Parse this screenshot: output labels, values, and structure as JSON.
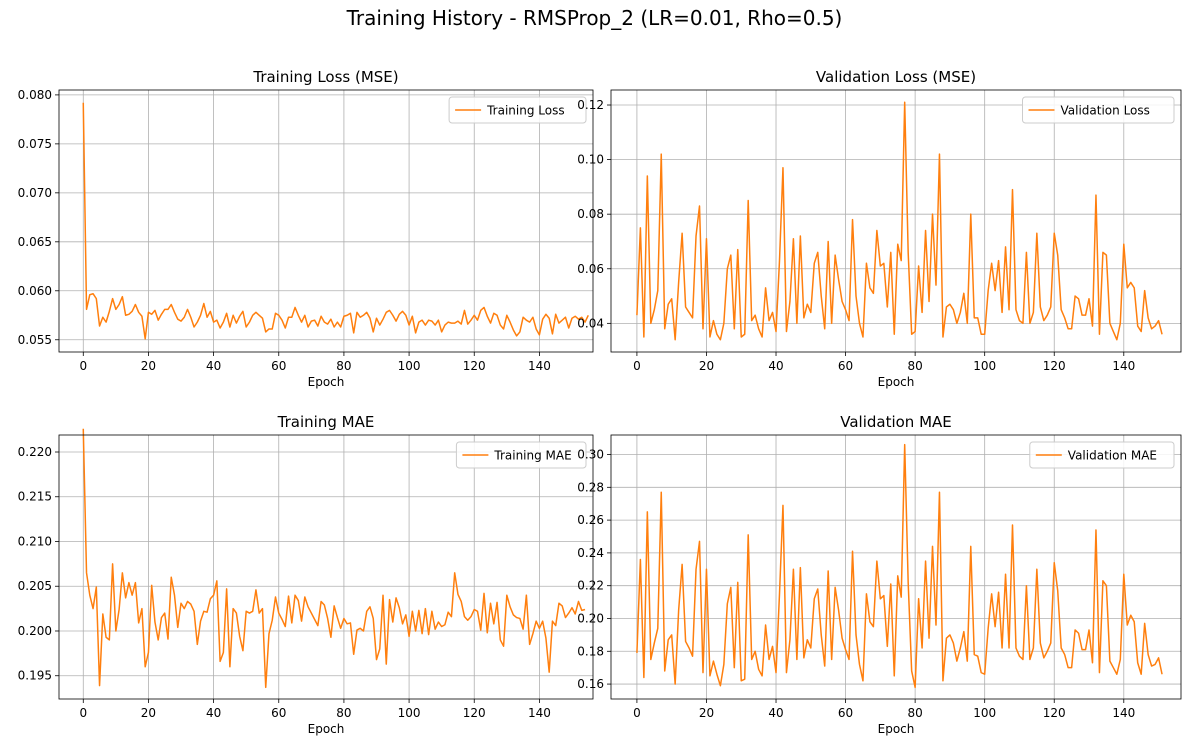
{
  "figure": {
    "suptitle": "Training History - RMSProp_2 (LR=0.01, Rho=0.5)"
  },
  "style": {
    "line_color": "#ff7f0e",
    "grid_color": "#b0b0b0",
    "axis_color": "#000000"
  },
  "chart_data": [
    {
      "type": "line",
      "title": "Training Loss (MSE)",
      "xlabel": "Epoch",
      "ylabel": "",
      "xlim": [
        -7.45,
        156.45
      ],
      "ylim": [
        0.05375,
        0.0805
      ],
      "xticks": [
        0,
        20,
        40,
        60,
        80,
        100,
        120,
        140
      ],
      "yticks": [
        0.055,
        0.06,
        0.065,
        0.07,
        0.075,
        0.08
      ],
      "ytick_labels": [
        "0.055",
        "0.060",
        "0.065",
        "0.070",
        "0.075",
        "0.080"
      ],
      "grid": true,
      "legend": "upper right",
      "series": [
        {
          "name": "Training Loss",
          "y": [
            0.0792,
            0.0581,
            0.0596,
            0.0597,
            0.0592,
            0.0564,
            0.0573,
            0.0568,
            0.0579,
            0.0592,
            0.0581,
            0.0586,
            0.0594,
            0.0575,
            0.0576,
            0.0579,
            0.0586,
            0.0578,
            0.0574,
            0.0551,
            0.0578,
            0.0576,
            0.058,
            0.057,
            0.0576,
            0.0581,
            0.0581,
            0.0586,
            0.0578,
            0.0571,
            0.0569,
            0.0573,
            0.0581,
            0.0573,
            0.0563,
            0.0568,
            0.0575,
            0.0587,
            0.0573,
            0.0579,
            0.0568,
            0.057,
            0.0562,
            0.0568,
            0.0577,
            0.0563,
            0.0575,
            0.0567,
            0.0574,
            0.0579,
            0.0563,
            0.0568,
            0.0575,
            0.0578,
            0.0575,
            0.0572,
            0.0558,
            0.0561,
            0.0561,
            0.0577,
            0.0575,
            0.057,
            0.0562,
            0.0573,
            0.0573,
            0.0583,
            0.0575,
            0.0568,
            0.0575,
            0.0563,
            0.0569,
            0.057,
            0.0564,
            0.0574,
            0.0568,
            0.0566,
            0.0571,
            0.0563,
            0.0568,
            0.0563,
            0.0574,
            0.0575,
            0.0577,
            0.0557,
            0.0578,
            0.0573,
            0.0575,
            0.0578,
            0.0572,
            0.0558,
            0.0572,
            0.0565,
            0.0571,
            0.0578,
            0.058,
            0.0575,
            0.0569,
            0.0576,
            0.0579,
            0.0575,
            0.0565,
            0.0574,
            0.0557,
            0.0568,
            0.057,
            0.0565,
            0.057,
            0.0569,
            0.0565,
            0.057,
            0.0558,
            0.0565,
            0.0568,
            0.0567,
            0.0567,
            0.0569,
            0.0566,
            0.058,
            0.0566,
            0.057,
            0.0575,
            0.057,
            0.058,
            0.0583,
            0.0574,
            0.0567,
            0.0577,
            0.0575,
            0.0565,
            0.0561,
            0.0575,
            0.0568,
            0.056,
            0.0554,
            0.0558,
            0.0573,
            0.057,
            0.0568,
            0.0573,
            0.0561,
            0.0555,
            0.0571,
            0.0576,
            0.0572,
            0.0556,
            0.0576,
            0.0567,
            0.057,
            0.0573,
            0.0562,
            0.0572,
            0.0574,
            0.0571,
            0.0573,
            0.0568,
            0.0575
          ]
        }
      ]
    },
    {
      "type": "line",
      "title": "Validation Loss (MSE)",
      "xlabel": "Epoch",
      "ylabel": "",
      "xlim": [
        -7.45,
        156.45
      ],
      "ylim": [
        0.0295,
        0.1255
      ],
      "xticks": [
        0,
        20,
        40,
        60,
        80,
        100,
        120,
        140
      ],
      "yticks": [
        0.04,
        0.06,
        0.08,
        0.1,
        0.12
      ],
      "ytick_labels": [
        "0.04",
        "0.06",
        "0.08",
        "0.10",
        "0.12"
      ],
      "grid": true,
      "legend": "upper right",
      "series": [
        {
          "name": "Validation Loss",
          "y": [
            0.043,
            0.075,
            0.035,
            0.094,
            0.04,
            0.045,
            0.052,
            0.102,
            0.038,
            0.047,
            0.049,
            0.034,
            0.055,
            0.073,
            0.046,
            0.044,
            0.042,
            0.072,
            0.083,
            0.038,
            0.071,
            0.035,
            0.041,
            0.036,
            0.034,
            0.04,
            0.06,
            0.065,
            0.038,
            0.067,
            0.035,
            0.036,
            0.085,
            0.041,
            0.043,
            0.038,
            0.035,
            0.053,
            0.041,
            0.044,
            0.037,
            0.063,
            0.097,
            0.037,
            0.048,
            0.071,
            0.04,
            0.072,
            0.042,
            0.047,
            0.044,
            0.062,
            0.066,
            0.05,
            0.038,
            0.07,
            0.04,
            0.065,
            0.056,
            0.048,
            0.045,
            0.041,
            0.078,
            0.05,
            0.04,
            0.035,
            0.062,
            0.053,
            0.051,
            0.074,
            0.061,
            0.062,
            0.046,
            0.066,
            0.036,
            0.069,
            0.063,
            0.121,
            0.066,
            0.036,
            0.037,
            0.061,
            0.044,
            0.074,
            0.048,
            0.08,
            0.054,
            0.102,
            0.035,
            0.046,
            0.047,
            0.045,
            0.04,
            0.044,
            0.051,
            0.04,
            0.08,
            0.042,
            0.042,
            0.036,
            0.036,
            0.052,
            0.062,
            0.052,
            0.063,
            0.044,
            0.068,
            0.045,
            0.089,
            0.045,
            0.041,
            0.04,
            0.066,
            0.04,
            0.044,
            0.073,
            0.046,
            0.041,
            0.043,
            0.046,
            0.073,
            0.065,
            0.045,
            0.042,
            0.038,
            0.038,
            0.05,
            0.049,
            0.043,
            0.043,
            0.049,
            0.039,
            0.087,
            0.036,
            0.066,
            0.065,
            0.04,
            0.037,
            0.034,
            0.04,
            0.069,
            0.053,
            0.055,
            0.053,
            0.039,
            0.037,
            0.052,
            0.042,
            0.038,
            0.039,
            0.041,
            0.036
          ]
        }
      ]
    },
    {
      "type": "line",
      "title": "Training MAE",
      "xlabel": "Epoch",
      "ylabel": "",
      "xlim": [
        -7.45,
        156.45
      ],
      "ylim": [
        0.1924,
        0.2219
      ],
      "xticks": [
        0,
        20,
        40,
        60,
        80,
        100,
        120,
        140
      ],
      "yticks": [
        0.195,
        0.2,
        0.205,
        0.21,
        0.215,
        0.22
      ],
      "ytick_labels": [
        "0.195",
        "0.200",
        "0.205",
        "0.210",
        "0.215",
        "0.220"
      ],
      "grid": true,
      "legend": "upper right",
      "series": [
        {
          "name": "Training MAE",
          "y": [
            0.2226,
            0.2065,
            0.204,
            0.2025,
            0.2049,
            0.1939,
            0.2019,
            0.1993,
            0.199,
            0.2075,
            0.2,
            0.2024,
            0.2065,
            0.2037,
            0.2054,
            0.204,
            0.2054,
            0.2009,
            0.2025,
            0.196,
            0.1976,
            0.2051,
            0.201,
            0.199,
            0.2015,
            0.202,
            0.1991,
            0.206,
            0.204,
            0.2004,
            0.2031,
            0.2025,
            0.2033,
            0.203,
            0.2022,
            0.1985,
            0.2011,
            0.2022,
            0.2021,
            0.2036,
            0.204,
            0.2056,
            0.1966,
            0.1976,
            0.2047,
            0.196,
            0.2025,
            0.202,
            0.1994,
            0.1978,
            0.2022,
            0.202,
            0.2022,
            0.2046,
            0.202,
            0.2025,
            0.1937,
            0.1997,
            0.2012,
            0.2038,
            0.202,
            0.2013,
            0.2005,
            0.2039,
            0.2009,
            0.204,
            0.2034,
            0.2011,
            0.2038,
            0.2027,
            0.202,
            0.2013,
            0.2006,
            0.2033,
            0.2029,
            0.2014,
            0.1993,
            0.2028,
            0.2015,
            0.2003,
            0.2014,
            0.2008,
            0.2009,
            0.1974,
            0.2001,
            0.2003,
            0.2,
            0.2022,
            0.2027,
            0.2014,
            0.1968,
            0.198,
            0.204,
            0.1963,
            0.2035,
            0.201,
            0.2037,
            0.2026,
            0.2008,
            0.2018,
            0.1994,
            0.2022,
            0.2,
            0.2023,
            0.1997,
            0.2025,
            0.1996,
            0.2022,
            0.2002,
            0.201,
            0.2005,
            0.2007,
            0.2021,
            0.2016,
            0.2065,
            0.2041,
            0.2033,
            0.2016,
            0.2012,
            0.2016,
            0.2024,
            0.2022,
            0.2001,
            0.2042,
            0.1998,
            0.2031,
            0.2008,
            0.2032,
            0.199,
            0.1983,
            0.204,
            0.2027,
            0.2018,
            0.2015,
            0.2014,
            0.2002,
            0.204,
            0.1985,
            0.1997,
            0.2011,
            0.2003,
            0.2011,
            0.1992,
            0.1954,
            0.2011,
            0.2006,
            0.2031,
            0.2028,
            0.2015,
            0.202,
            0.2026,
            0.2019,
            0.2033,
            0.2023,
            0.2024
          ]
        }
      ]
    },
    {
      "type": "line",
      "title": "Validation MAE",
      "xlabel": "Epoch",
      "ylabel": "",
      "xlim": [
        -7.45,
        156.45
      ],
      "ylim": [
        0.1509,
        0.3119
      ],
      "xticks": [
        0,
        20,
        40,
        60,
        80,
        100,
        120,
        140
      ],
      "yticks": [
        0.16,
        0.18,
        0.2,
        0.22,
        0.24,
        0.26,
        0.28,
        0.3
      ],
      "ytick_labels": [
        "0.16",
        "0.18",
        "0.20",
        "0.22",
        "0.24",
        "0.26",
        "0.28",
        "0.30"
      ],
      "grid": true,
      "legend": "upper right",
      "series": [
        {
          "name": "Validation MAE",
          "y": [
            0.179,
            0.236,
            0.164,
            0.265,
            0.175,
            0.185,
            0.194,
            0.277,
            0.168,
            0.187,
            0.19,
            0.16,
            0.205,
            0.233,
            0.186,
            0.182,
            0.177,
            0.23,
            0.247,
            0.167,
            0.23,
            0.165,
            0.174,
            0.166,
            0.159,
            0.172,
            0.209,
            0.219,
            0.17,
            0.222,
            0.162,
            0.163,
            0.251,
            0.175,
            0.18,
            0.169,
            0.165,
            0.196,
            0.175,
            0.183,
            0.167,
            0.215,
            0.269,
            0.167,
            0.187,
            0.23,
            0.175,
            0.231,
            0.176,
            0.187,
            0.182,
            0.212,
            0.218,
            0.19,
            0.171,
            0.229,
            0.175,
            0.219,
            0.205,
            0.188,
            0.181,
            0.175,
            0.241,
            0.19,
            0.172,
            0.162,
            0.215,
            0.198,
            0.195,
            0.235,
            0.212,
            0.214,
            0.183,
            0.221,
            0.165,
            0.226,
            0.213,
            0.306,
            0.222,
            0.168,
            0.158,
            0.212,
            0.182,
            0.235,
            0.188,
            0.244,
            0.196,
            0.277,
            0.162,
            0.188,
            0.19,
            0.185,
            0.174,
            0.182,
            0.192,
            0.174,
            0.244,
            0.178,
            0.177,
            0.167,
            0.166,
            0.194,
            0.215,
            0.195,
            0.216,
            0.182,
            0.227,
            0.182,
            0.257,
            0.182,
            0.177,
            0.175,
            0.22,
            0.175,
            0.182,
            0.23,
            0.185,
            0.176,
            0.18,
            0.185,
            0.234,
            0.217,
            0.182,
            0.178,
            0.17,
            0.17,
            0.193,
            0.191,
            0.181,
            0.181,
            0.193,
            0.173,
            0.254,
            0.167,
            0.223,
            0.22,
            0.174,
            0.17,
            0.166,
            0.175,
            0.227,
            0.196,
            0.202,
            0.198,
            0.173,
            0.166,
            0.197,
            0.178,
            0.171,
            0.172,
            0.176,
            0.166
          ]
        }
      ]
    }
  ]
}
